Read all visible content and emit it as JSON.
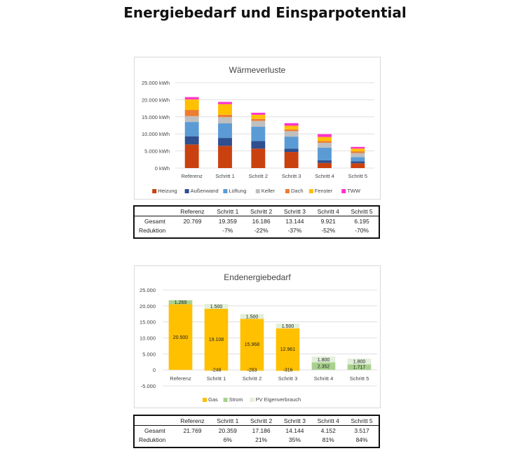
{
  "page_title": "Energiebedarf und Einsparpotential",
  "chart_data": [
    {
      "type": "bar",
      "stacked": true,
      "title": "Wärmeverluste",
      "categories": [
        "Referenz",
        "Schritt 1",
        "Schritt 2",
        "Schritt 3",
        "Schritt 4",
        "Schritt 5"
      ],
      "y_unit": "kWh",
      "ylim": [
        0,
        25000
      ],
      "yticks": [
        "0 kWh",
        "5.000 kWh",
        "10.000 kWh",
        "15.000 kWh",
        "20.000 kWh",
        "25.000 kWh"
      ],
      "grid": true,
      "legend_position": "bottom",
      "series": [
        {
          "name": "Heizung",
          "color": "#c9410f",
          "values": [
            6900,
            6500,
            5700,
            4700,
            1500,
            1400
          ]
        },
        {
          "name": "Außenwand",
          "color": "#2f4f8f",
          "values": [
            2400,
            2300,
            2200,
            1000,
            800,
            600
          ]
        },
        {
          "name": "Lüftung",
          "color": "#5b9bd5",
          "values": [
            4200,
            4300,
            4200,
            3500,
            3700,
            1200
          ]
        },
        {
          "name": "Keller",
          "color": "#bfbfbf",
          "values": [
            1700,
            1800,
            1700,
            1600,
            1400,
            1200
          ]
        },
        {
          "name": "Dach",
          "color": "#ed7d31",
          "values": [
            1800,
            700,
            600,
            500,
            500,
            500
          ]
        },
        {
          "name": "Fenster",
          "color": "#ffc000",
          "values": [
            3100,
            3100,
            1200,
            1100,
            1200,
            800
          ]
        },
        {
          "name": "TWW",
          "color": "#ff33cc",
          "values": [
            669,
            659,
            586,
            744,
            821,
            495
          ]
        }
      ]
    },
    {
      "type": "bar",
      "stacked": true,
      "title": "Endenergiebedarf",
      "categories": [
        "Referenz",
        "Schritt 1",
        "Schritt 2",
        "Schritt 3",
        "Schritt 4",
        "Schritt 5"
      ],
      "ylim": [
        -5000,
        25000
      ],
      "yticks": [
        "-5.000",
        "0",
        "5.000",
        "10.000",
        "15.000",
        "20.000",
        "25.000"
      ],
      "grid": true,
      "legend_position": "bottom",
      "series": [
        {
          "name": "Gas",
          "color": "#ffc000",
          "values": [
            20500,
            19108,
            15968,
            12961,
            0,
            0
          ],
          "labels": [
            "20.500",
            "19.108",
            "15.968",
            "12.961",
            "",
            ""
          ]
        },
        {
          "name": "Strom",
          "color": "#a9d18e",
          "values": [
            1269,
            0,
            0,
            0,
            2352,
            1717
          ],
          "labels": [
            "1.269",
            "",
            "",
            "",
            "2.352",
            "1.717"
          ]
        },
        {
          "name": "PV Eigenverbrauch",
          "color": "#e2efda",
          "values": [
            0,
            1500,
            1500,
            1500,
            1800,
            1800
          ],
          "labels": [
            "",
            "1.500",
            "1.500",
            "1.500",
            "1.800",
            "1.800"
          ]
        }
      ],
      "negative_values": [
        0,
        -248,
        -283,
        -316,
        0,
        0
      ],
      "negative_labels": [
        "",
        "-248",
        "-283",
        "-316",
        "",
        ""
      ]
    }
  ],
  "table1": {
    "headers": [
      "",
      "Referenz",
      "Schritt 1",
      "Schritt 2",
      "Schritt 3",
      "Schritt 4",
      "Schritt 5"
    ],
    "rows": [
      [
        "Gesamt",
        "20.769",
        "19.359",
        "16.186",
        "13.144",
        "9.921",
        "6.195"
      ],
      [
        "Reduktion",
        "",
        "-7%",
        "-22%",
        "-37%",
        "-52%",
        "-70%"
      ]
    ]
  },
  "table2": {
    "headers": [
      "",
      "Referenz",
      "Schritt 1",
      "Schritt 2",
      "Schritt 3",
      "Schritt 4",
      "Schritt 5"
    ],
    "rows": [
      [
        "Gesamt",
        "21.769",
        "20.359",
        "17.186",
        "14.144",
        "4.152",
        "3.517"
      ],
      [
        "Reduktion",
        "",
        "6%",
        "21%",
        "35%",
        "81%",
        "84%"
      ]
    ]
  }
}
